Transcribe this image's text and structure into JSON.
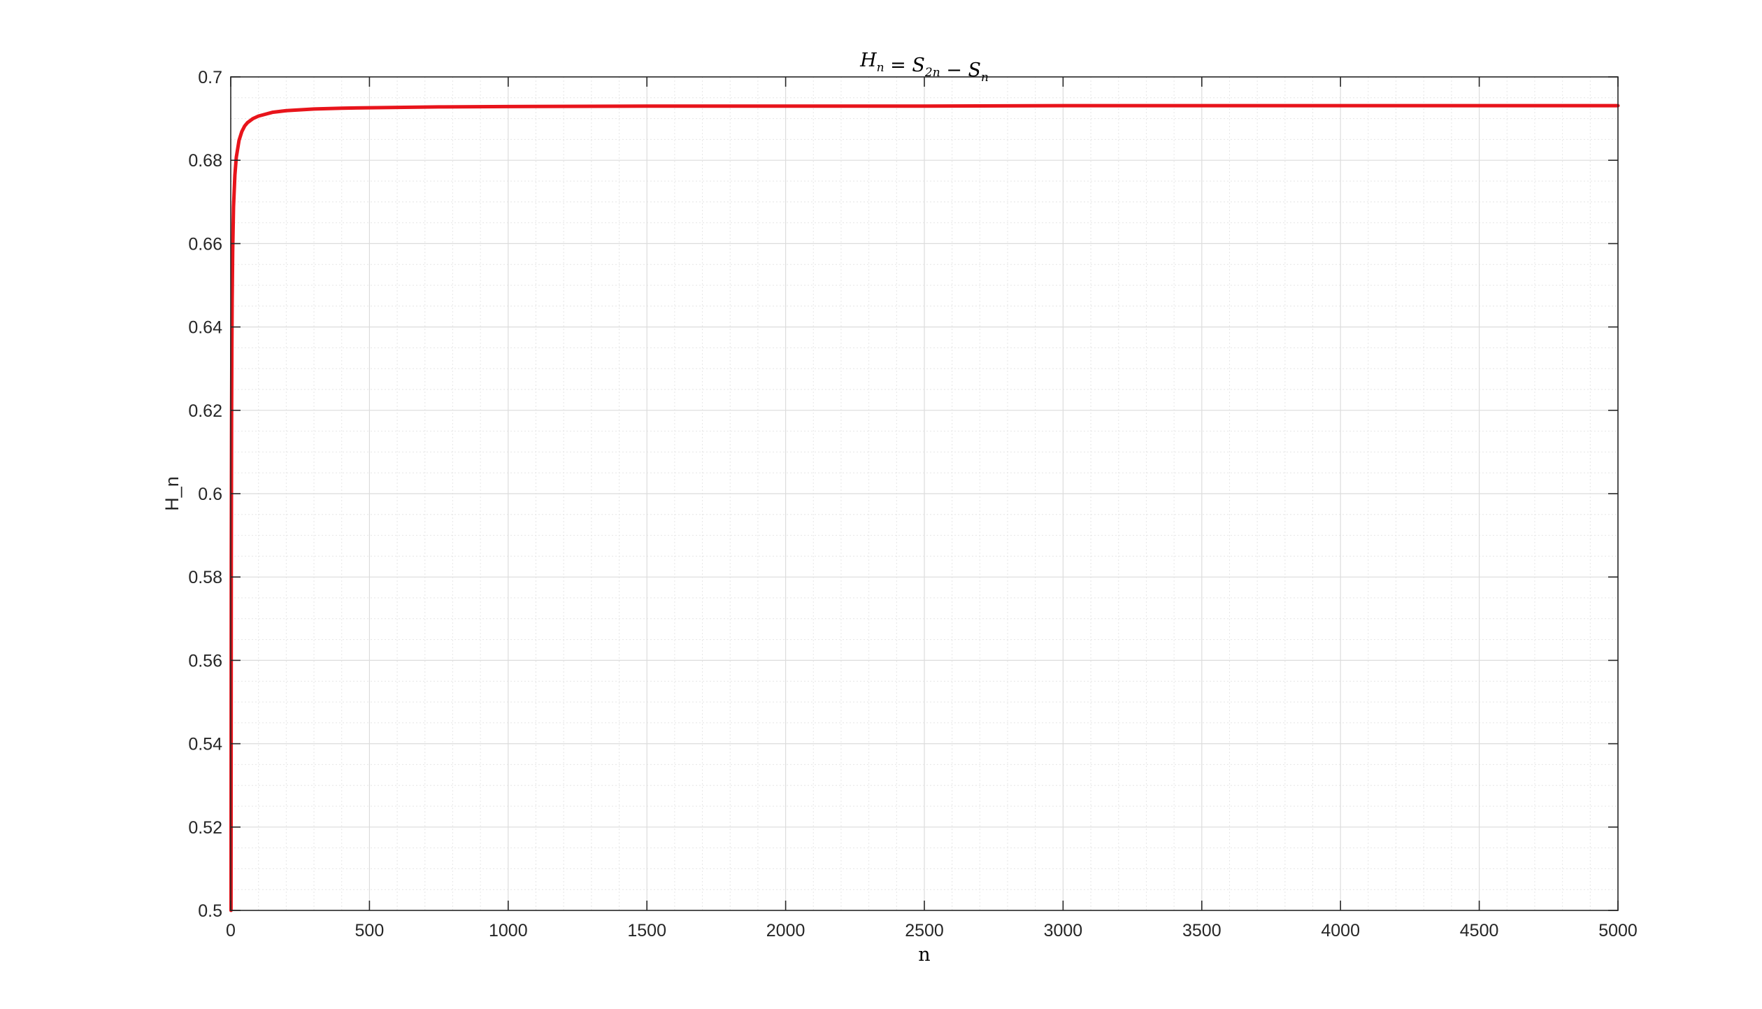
{
  "chart_data": {
    "type": "line",
    "title": {
      "parts": [
        {
          "text": "H",
          "sub": "n"
        },
        {
          "text": " = "
        },
        {
          "text": "S",
          "sub": "2n"
        },
        {
          "text": " − "
        },
        {
          "text": "S",
          "sub": "n"
        }
      ]
    },
    "xlabel": "n",
    "ylabel": "H_n",
    "xlim": [
      0,
      5000
    ],
    "ylim": [
      0.5,
      0.7
    ],
    "x_ticks": [
      0,
      500,
      1000,
      1500,
      2000,
      2500,
      3000,
      3500,
      4000,
      4500,
      5000
    ],
    "y_ticks": [
      0.5,
      0.52,
      0.54,
      0.56,
      0.58,
      0.6,
      0.62,
      0.64,
      0.66,
      0.68,
      0.7
    ],
    "x_tick_labels": [
      "0",
      "500",
      "1000",
      "1500",
      "2000",
      "2500",
      "3000",
      "3500",
      "4000",
      "4500",
      "5000"
    ],
    "y_tick_labels": [
      "0.5",
      "0.52",
      "0.54",
      "0.56",
      "0.58",
      "0.6",
      "0.62",
      "0.64",
      "0.66",
      "0.68",
      "0.7"
    ],
    "grid": "on",
    "minor_grid": "on",
    "line_color": "#e8141b",
    "series": [
      {
        "x": [
          1,
          2,
          3,
          4,
          5,
          7,
          10,
          15,
          20,
          30,
          40,
          50,
          60,
          80,
          100,
          150,
          200,
          300,
          400,
          500,
          750,
          1000,
          1500,
          2000,
          2500,
          3000,
          3500,
          4000,
          4500,
          5000
        ],
        "values": [
          0.5,
          0.5833,
          0.6167,
          0.6345,
          0.6456,
          0.6581,
          0.6688,
          0.6765,
          0.6807,
          0.6848,
          0.6869,
          0.6882,
          0.689,
          0.69,
          0.6906,
          0.6915,
          0.6919,
          0.6923,
          0.6925,
          0.6926,
          0.6928,
          0.6929,
          0.693,
          0.693,
          0.693,
          0.6931,
          0.6931,
          0.6931,
          0.6931,
          0.6931
        ]
      }
    ]
  }
}
